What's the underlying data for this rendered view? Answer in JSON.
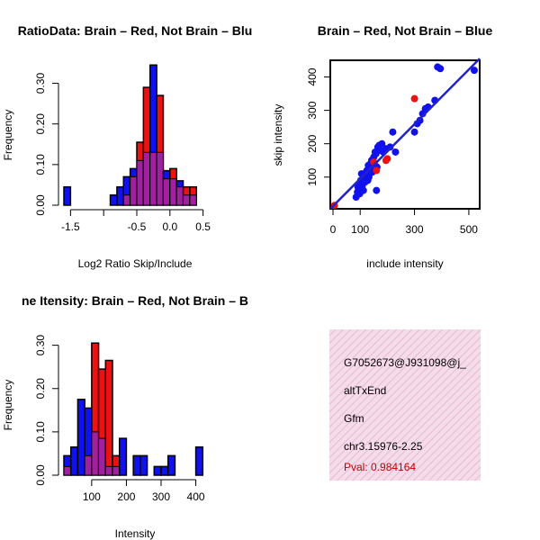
{
  "colors": {
    "red": "#ee1111",
    "blue": "#1111ee",
    "purple": "#a020a0",
    "panel_bg": "#f5dcea",
    "pval": "#c00000",
    "fit_line": "#2222cc"
  },
  "chart_data": [
    {
      "id": "ratio-hist",
      "type": "bar",
      "subtype": "overlaid-histogram",
      "title": "RatioData: Brain – Red, Not Brain – Blue",
      "title_visible": "RatioData: Brain – Red, Not Brain – Blu",
      "xlabel": "Log2 Ratio Skip/Include",
      "ylabel": "Frequency",
      "xlim": [
        -1.6,
        0.6
      ],
      "ylim": [
        0,
        0.35
      ],
      "xticks": [
        -1.5,
        -1.0,
        -0.5,
        0.0,
        0.5
      ],
      "xtick_labels": [
        "-1.5",
        "",
        "-0.5",
        "0.0",
        "0.5"
      ],
      "yticks": [
        0.0,
        0.1,
        0.2,
        0.3
      ],
      "ytick_labels": [
        "0.00",
        "0.10",
        "0.20",
        "0.30"
      ],
      "bin_width": 0.1,
      "bins": [
        {
          "x0": -1.6,
          "red": 0.0,
          "blue": 0.045
        },
        {
          "x0": -0.9,
          "red": 0.0,
          "blue": 0.025
        },
        {
          "x0": -0.8,
          "red": 0.0,
          "blue": 0.045
        },
        {
          "x0": -0.7,
          "red": 0.025,
          "blue": 0.07
        },
        {
          "x0": -0.6,
          "red": 0.07,
          "blue": 0.09
        },
        {
          "x0": -0.5,
          "red": 0.155,
          "blue": 0.11
        },
        {
          "x0": -0.4,
          "red": 0.29,
          "blue": 0.13
        },
        {
          "x0": -0.3,
          "red": 0.13,
          "blue": 0.345
        },
        {
          "x0": -0.2,
          "red": 0.27,
          "blue": 0.13
        },
        {
          "x0": -0.1,
          "red": 0.065,
          "blue": 0.085
        },
        {
          "x0": 0.0,
          "red": 0.09,
          "blue": 0.065
        },
        {
          "x0": 0.1,
          "red": 0.045,
          "blue": 0.06
        },
        {
          "x0": 0.2,
          "red": 0.045,
          "blue": 0.025
        },
        {
          "x0": 0.3,
          "red": 0.045,
          "blue": 0.025
        }
      ]
    },
    {
      "id": "scatter",
      "type": "scatter",
      "title": "Brain – Red, Not Brain – Blue",
      "xlabel": "include intensity",
      "ylabel": "skip intensity",
      "xlim": [
        -10,
        540
      ],
      "ylim": [
        5,
        450
      ],
      "xticks": [
        0,
        100,
        300,
        500
      ],
      "yticks": [
        100,
        200,
        300,
        400
      ],
      "series": [
        {
          "name": "Not Brain",
          "color": "blue",
          "points": [
            [
              85,
              40
            ],
            [
              90,
              55
            ],
            [
              92,
              70
            ],
            [
              95,
              80
            ],
            [
              98,
              50
            ],
            [
              100,
              65
            ],
            [
              102,
              90
            ],
            [
              105,
              110
            ],
            [
              108,
              75
            ],
            [
              110,
              95
            ],
            [
              112,
              60
            ],
            [
              115,
              100
            ],
            [
              118,
              85
            ],
            [
              120,
              105
            ],
            [
              122,
              115
            ],
            [
              125,
              120
            ],
            [
              128,
              90
            ],
            [
              130,
              135
            ],
            [
              132,
              100
            ],
            [
              135,
              110
            ],
            [
              138,
              140
            ],
            [
              140,
              125
            ],
            [
              142,
              150
            ],
            [
              145,
              115
            ],
            [
              148,
              130
            ],
            [
              150,
              160
            ],
            [
              152,
              140
            ],
            [
              155,
              175
            ],
            [
              158,
              170
            ],
            [
              160,
              60
            ],
            [
              162,
              130
            ],
            [
              165,
              190
            ],
            [
              170,
              195
            ],
            [
              175,
              180
            ],
            [
              180,
              200
            ],
            [
              185,
              175
            ],
            [
              195,
              185
            ],
            [
              210,
              190
            ],
            [
              220,
              235
            ],
            [
              230,
              175
            ],
            [
              300,
              235
            ],
            [
              310,
              260
            ],
            [
              320,
              270
            ],
            [
              330,
              290
            ],
            [
              340,
              305
            ],
            [
              350,
              310
            ],
            [
              375,
              330
            ],
            [
              385,
              430
            ],
            [
              395,
              425
            ],
            [
              520,
              420
            ]
          ]
        },
        {
          "name": "Brain",
          "color": "red",
          "points": [
            [
              5,
              15
            ],
            [
              150,
              145
            ],
            [
              160,
              120
            ],
            [
              195,
              150
            ],
            [
              200,
              155
            ],
            [
              300,
              335
            ]
          ]
        }
      ],
      "fit_line": {
        "x": [
          -10,
          540
        ],
        "y": [
          5,
          455
        ]
      }
    },
    {
      "id": "intensity-hist",
      "type": "bar",
      "subtype": "overlaid-histogram",
      "title": "Gene Itensity: Brain – Red, Not Brain – Blue",
      "title_visible": "ne Itensity: Brain – Red, Not Brain – B",
      "xlabel": "Intensity",
      "ylabel": "Frequency",
      "xlim": [
        20,
        440
      ],
      "ylim": [
        0,
        0.32
      ],
      "xticks": [
        100,
        200,
        300,
        400
      ],
      "yticks": [
        0.0,
        0.1,
        0.2,
        0.3
      ],
      "ytick_labels": [
        "0.00",
        "0.10",
        "0.20",
        "0.30"
      ],
      "bin_width": 20,
      "bins": [
        {
          "x0": 20,
          "red": 0.02,
          "blue": 0.045
        },
        {
          "x0": 40,
          "red": 0.0,
          "blue": 0.065
        },
        {
          "x0": 60,
          "red": 0.0,
          "blue": 0.175
        },
        {
          "x0": 80,
          "red": 0.045,
          "blue": 0.155
        },
        {
          "x0": 100,
          "red": 0.305,
          "blue": 0.1
        },
        {
          "x0": 120,
          "red": 0.245,
          "blue": 0.085
        },
        {
          "x0": 140,
          "red": 0.265,
          "blue": 0.02
        },
        {
          "x0": 160,
          "red": 0.045,
          "blue": 0.02
        },
        {
          "x0": 180,
          "red": 0.0,
          "blue": 0.085
        },
        {
          "x0": 200,
          "red": 0.0,
          "blue": 0.0
        },
        {
          "x0": 220,
          "red": 0.0,
          "blue": 0.045
        },
        {
          "x0": 240,
          "red": 0.0,
          "blue": 0.045
        },
        {
          "x0": 260,
          "red": 0.0,
          "blue": 0.0
        },
        {
          "x0": 280,
          "red": 0.0,
          "blue": 0.02
        },
        {
          "x0": 300,
          "red": 0.0,
          "blue": 0.02
        },
        {
          "x0": 320,
          "red": 0.0,
          "blue": 0.045
        },
        {
          "x0": 340,
          "red": 0.0,
          "blue": 0.0
        },
        {
          "x0": 360,
          "red": 0.0,
          "blue": 0.0
        },
        {
          "x0": 380,
          "red": 0.0,
          "blue": 0.0
        },
        {
          "x0": 400,
          "red": 0.0,
          "blue": 0.065
        }
      ]
    }
  ],
  "info_panel": {
    "probe_id": "G7052673@J931098@j_",
    "event_type": "altTxEnd",
    "gene": "Gfm",
    "location": "chr3.15976-2.25",
    "pval": "Pval: 0.984164"
  }
}
